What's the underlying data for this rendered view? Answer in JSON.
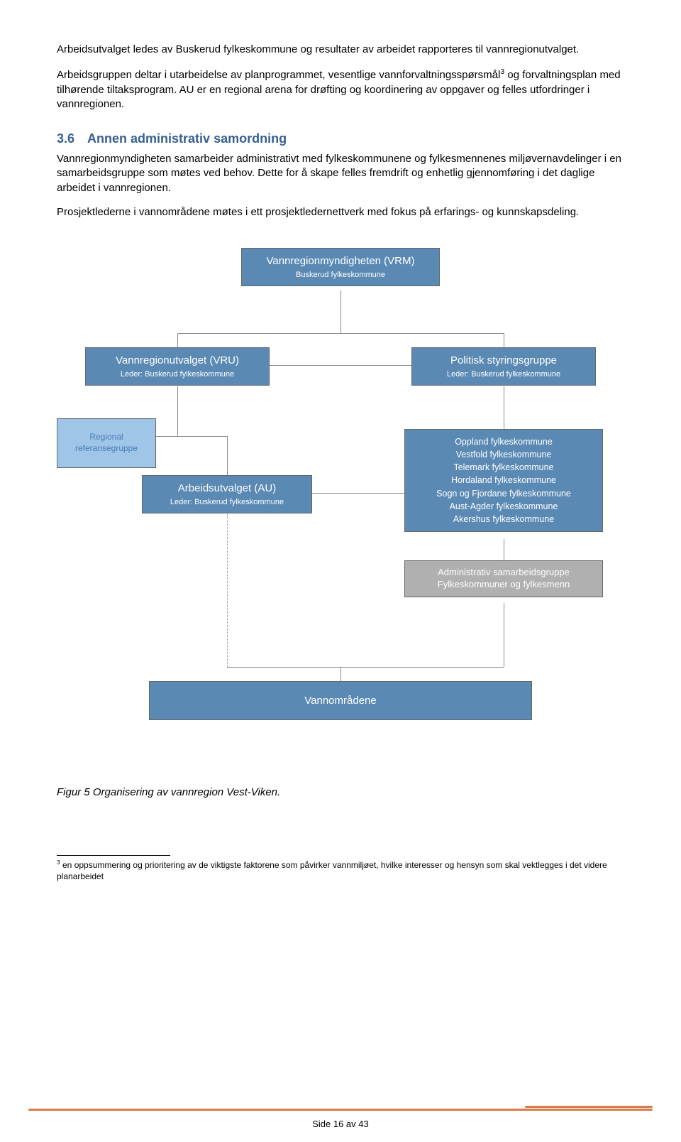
{
  "colors": {
    "heading": "#365f91",
    "box_blue": "#5a89b4",
    "box_lightblue": "#9fc5e8",
    "box_gray": "#b0b0b0",
    "line": "#888888",
    "footer_rule": "#d97b4a"
  },
  "paragraphs": {
    "p1": "Arbeidsutvalget ledes av Buskerud fylkeskommune og resultater av arbeidet rapporteres til vannregionutvalget.",
    "p2_a": "Arbeidsgruppen deltar i utarbeidelse av planprogrammet, vesentlige vannforvaltningsspørsmål",
    "p2_sup": "3",
    "p2_b": " og forvaltningsplan med tilhørende tiltaksprogram. AU er en regional arena for drøfting og koordinering av oppgaver og felles utfordringer i vannregionen.",
    "p3": "Vannregionmyndigheten samarbeider administrativt med fylkeskommunene og fylkesmennenes miljøvernavdelinger i en samarbeidsgruppe som møtes ved behov. Dette for å skape felles fremdrift og enhetlig gjennomføring i det daglige arbeidet i vannregionen.",
    "p4": "Prosjektlederne i vannområdene møtes i ett prosjektledernettverk med fokus på erfarings- og kunnskapsdeling."
  },
  "heading": {
    "num": "3.6",
    "text": "Annen administrativ samordning"
  },
  "orgchart": {
    "vrm": {
      "title": "Vannregionmyndigheten (VRM)",
      "sub": "Buskerud fylkeskommune"
    },
    "vru": {
      "title": "Vannregionutvalget (VRU)",
      "sub": "Leder: Buskerud fylkeskommune"
    },
    "pol": {
      "title": "Politisk styringsgruppe",
      "sub": "Leder: Buskerud fylkeskommune"
    },
    "ref": {
      "title": "Regional referansegruppe"
    },
    "au": {
      "title": "Arbeidsutvalget (AU)",
      "sub": "Leder: Buskerud fylkeskommune"
    },
    "fylker_lines": [
      "Oppland fylkeskommune",
      "Vestfold fylkeskommune",
      "Telemark fylkeskommune",
      "Hordaland fylkeskommune",
      "Sogn og Fjordane fylkeskommune",
      "Aust-Agder fylkeskommune",
      "Akershus fylkeskommune"
    ],
    "adm": {
      "l1": "Administrativ samarbeidsgruppe",
      "l2": "Fylkeskommuner og fylkesmenn"
    },
    "vann": {
      "title": "Vannområdene"
    }
  },
  "caption": "Figur 5  Organisering av vannregion Vest-Viken.",
  "footnote": {
    "sup": "3",
    "text": " en oppsummering og prioritering av de viktigste faktorene som påvirker vannmiljøet, hvilke interesser og hensyn som skal vektlegges i det videre planarbeidet"
  },
  "page_num": "Side 16 av 43"
}
